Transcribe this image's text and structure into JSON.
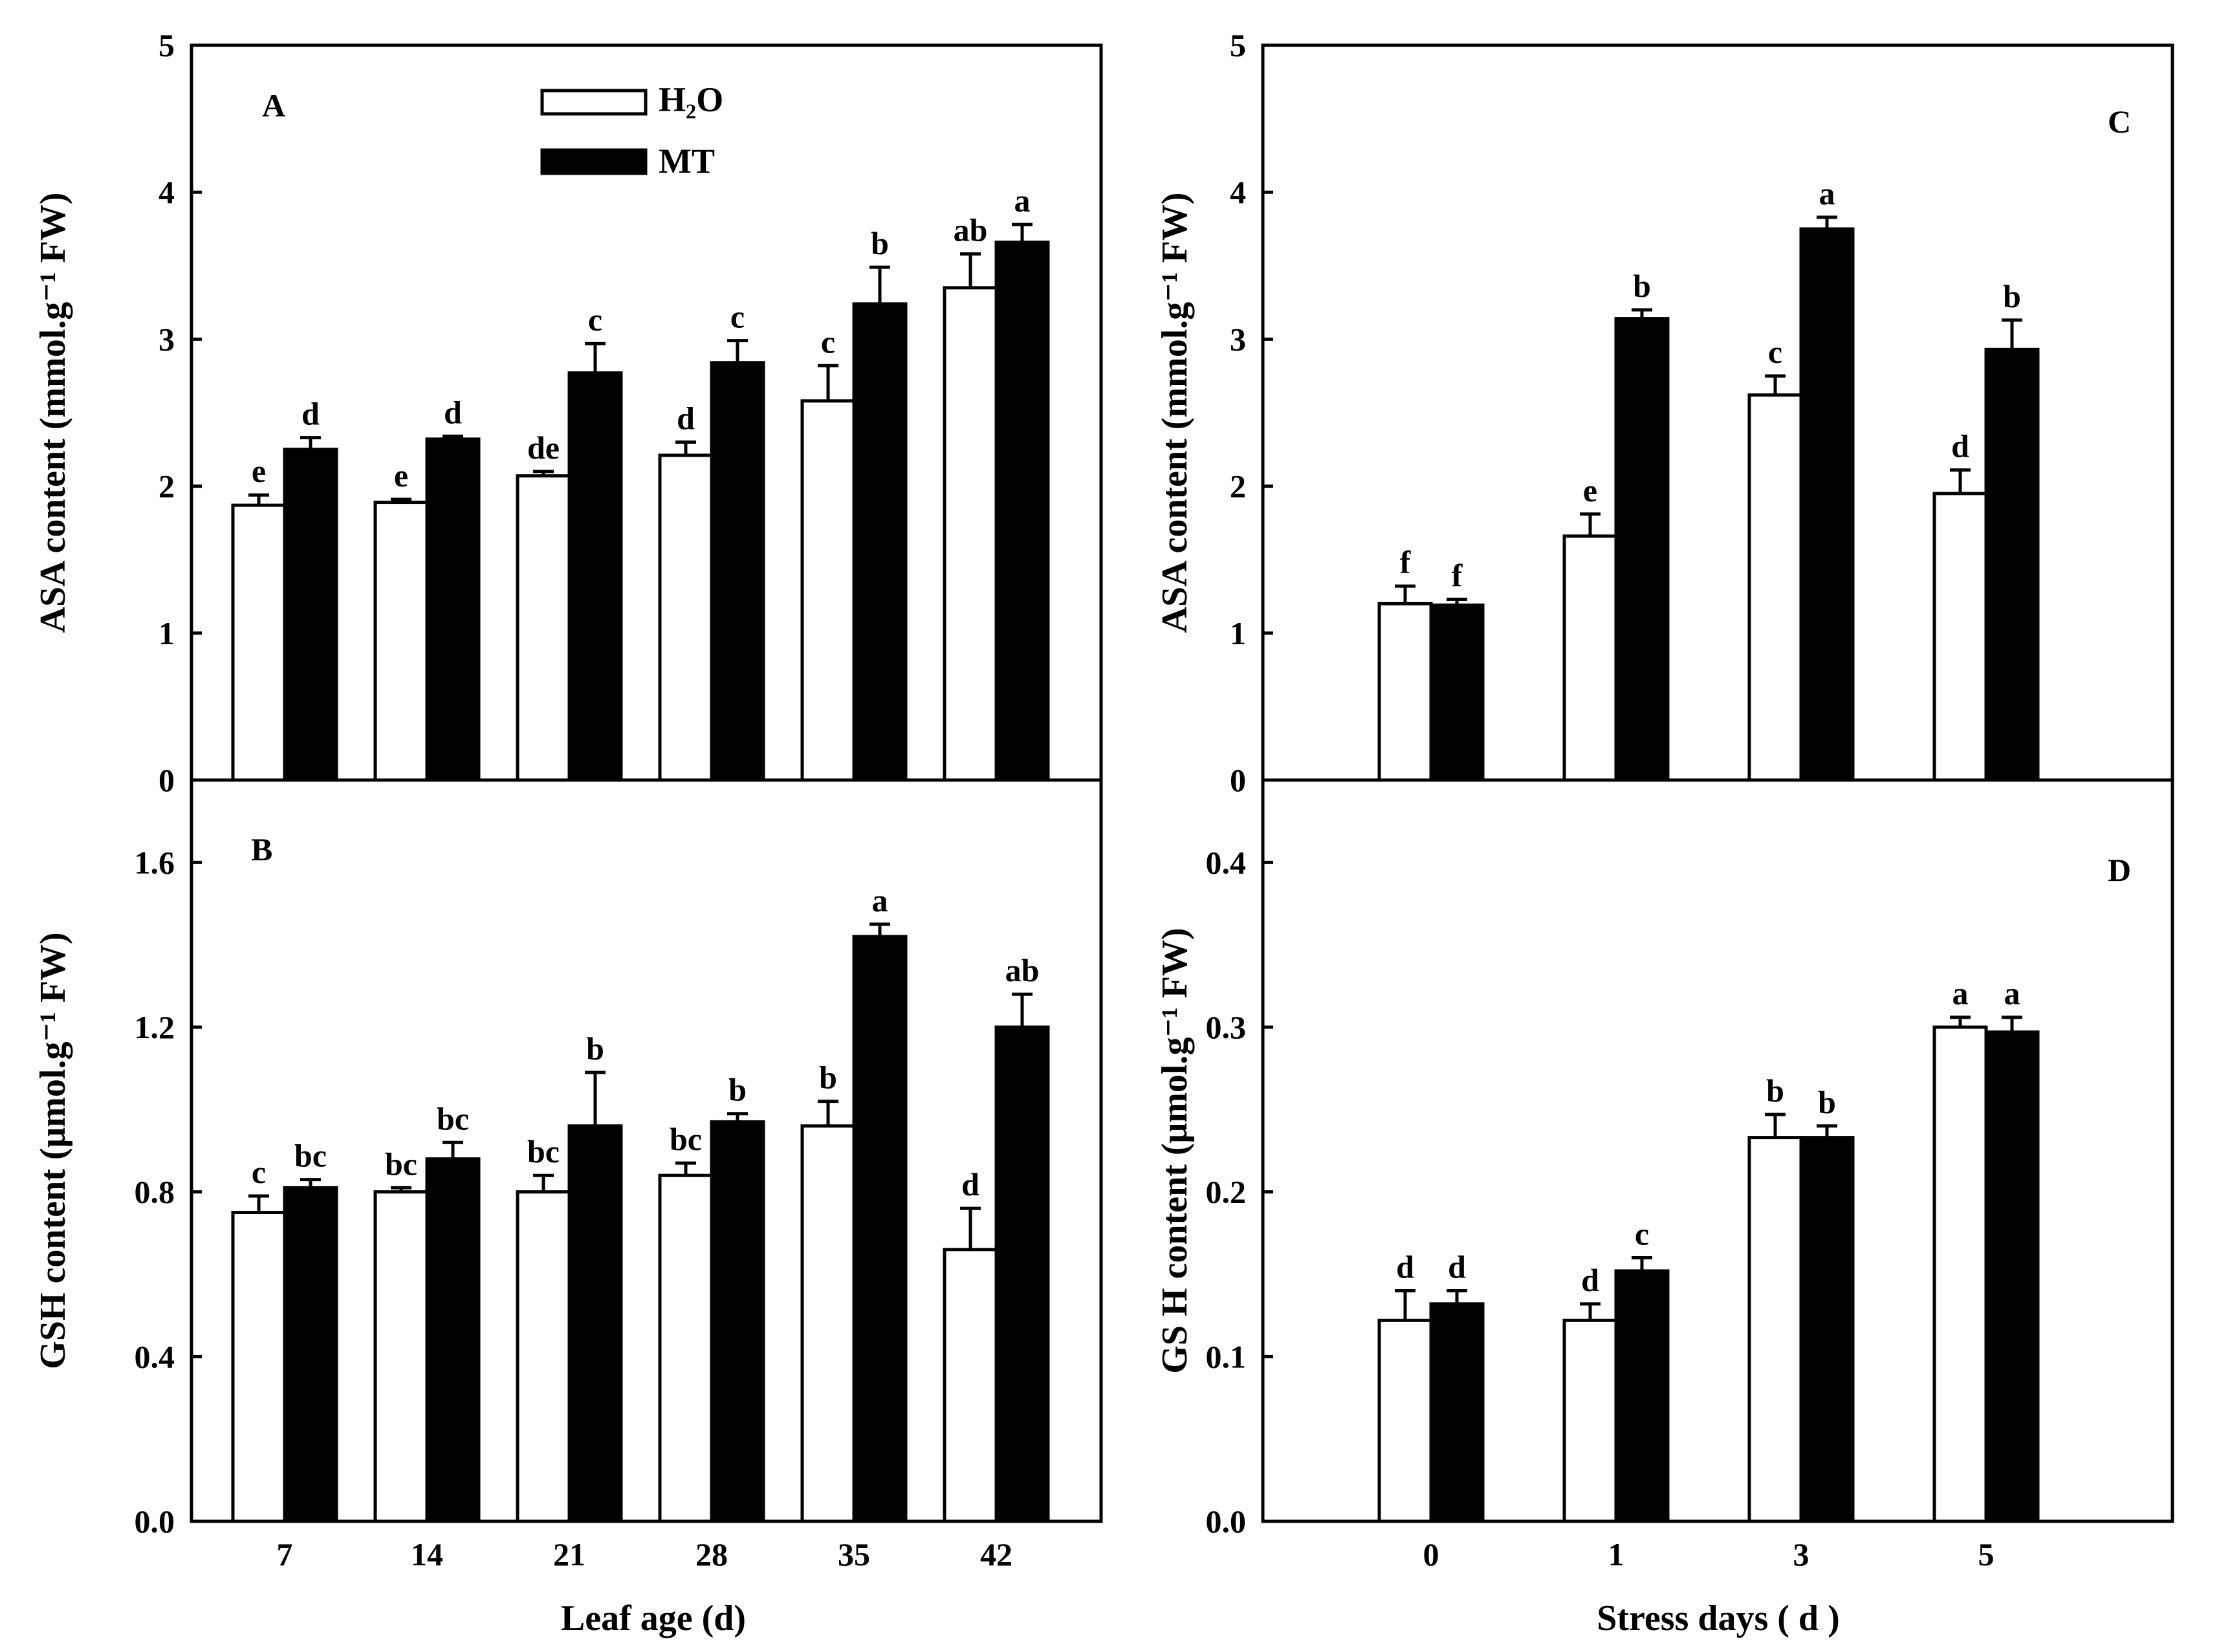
{
  "legend": [
    {
      "name": "H₂O",
      "fill": "#ffffff"
    },
    {
      "name": "MT",
      "fill": "#000000"
    }
  ],
  "chart_data": [
    {
      "panel": "A",
      "type": "bar",
      "ylabel": "ASA content (mmol.g⁻¹ FW)",
      "xlabel": "",
      "ylim": [
        0,
        5
      ],
      "yticks": [
        "0",
        "1",
        "2",
        "3",
        "4",
        "5"
      ],
      "categories": [
        "7",
        "14",
        "21",
        "28",
        "35",
        "42"
      ],
      "series": [
        {
          "name": "H₂O",
          "values": [
            1.87,
            1.89,
            2.07,
            2.21,
            2.58,
            3.35
          ],
          "errors": [
            0.07,
            0.02,
            0.03,
            0.09,
            0.24,
            0.23
          ],
          "letters": [
            "e",
            "e",
            "de",
            "d",
            "c",
            "ab"
          ]
        },
        {
          "name": "MT",
          "values": [
            2.25,
            2.32,
            2.77,
            2.84,
            3.24,
            3.66
          ],
          "errors": [
            0.08,
            0.02,
            0.2,
            0.15,
            0.25,
            0.12
          ],
          "letters": [
            "d",
            "d",
            "c",
            "c",
            "b",
            "a"
          ]
        }
      ]
    },
    {
      "panel": "B",
      "type": "bar",
      "ylabel": "GSH content (μmol.g⁻¹ FW)",
      "xlabel": "Leaf age (d)",
      "ylim": [
        0,
        1.8
      ],
      "yticks": [
        "0.0",
        "0.4",
        "0.8",
        "1.2",
        "1.6"
      ],
      "categories": [
        "7",
        "14",
        "21",
        "28",
        "35",
        "42"
      ],
      "series": [
        {
          "name": "H₂O",
          "values": [
            0.75,
            0.8,
            0.8,
            0.84,
            0.96,
            0.66
          ],
          "errors": [
            0.04,
            0.01,
            0.04,
            0.03,
            0.06,
            0.1
          ],
          "letters": [
            "c",
            "bc",
            "bc",
            "bc",
            "b",
            "d"
          ]
        },
        {
          "name": "MT",
          "values": [
            0.81,
            0.88,
            0.96,
            0.97,
            1.42,
            1.2
          ],
          "errors": [
            0.02,
            0.04,
            0.13,
            0.02,
            0.03,
            0.08
          ],
          "letters": [
            "bc",
            "bc",
            "b",
            "b",
            "a",
            "ab"
          ]
        }
      ]
    },
    {
      "panel": "C",
      "type": "bar",
      "ylabel": "ASA content (mmol.g⁻¹ FW)",
      "xlabel": "",
      "ylim": [
        0,
        5
      ],
      "yticks": [
        "0",
        "1",
        "2",
        "3",
        "4",
        "5"
      ],
      "categories": [
        "0",
        "1",
        "3",
        "5"
      ],
      "series": [
        {
          "name": "H₂O",
          "values": [
            1.2,
            1.66,
            2.62,
            1.95
          ],
          "errors": [
            0.12,
            0.15,
            0.13,
            0.16
          ],
          "letters": [
            "f",
            "e",
            "c",
            "d"
          ]
        },
        {
          "name": "MT",
          "values": [
            1.19,
            3.14,
            3.75,
            2.93
          ],
          "errors": [
            0.04,
            0.06,
            0.08,
            0.2
          ],
          "letters": [
            "f",
            "b",
            "a",
            "b"
          ]
        }
      ]
    },
    {
      "panel": "D",
      "type": "bar",
      "ylabel": "GS H content (μmol.g⁻¹ FW)",
      "xlabel": "Stress days ( d )",
      "ylim": [
        0,
        0.45
      ],
      "yticks": [
        "0.0",
        "0.1",
        "0.2",
        "0.3",
        "0.4"
      ],
      "categories": [
        "0",
        "1",
        "3",
        "5"
      ],
      "series": [
        {
          "name": "H₂O",
          "values": [
            0.122,
            0.122,
            0.233,
            0.3
          ],
          "errors": [
            0.018,
            0.01,
            0.014,
            0.006
          ],
          "letters": [
            "d",
            "d",
            "b",
            "a"
          ]
        },
        {
          "name": "MT",
          "values": [
            0.132,
            0.152,
            0.233,
            0.297
          ],
          "errors": [
            0.008,
            0.008,
            0.007,
            0.009
          ],
          "letters": [
            "d",
            "c",
            "b",
            "a"
          ]
        }
      ]
    }
  ]
}
